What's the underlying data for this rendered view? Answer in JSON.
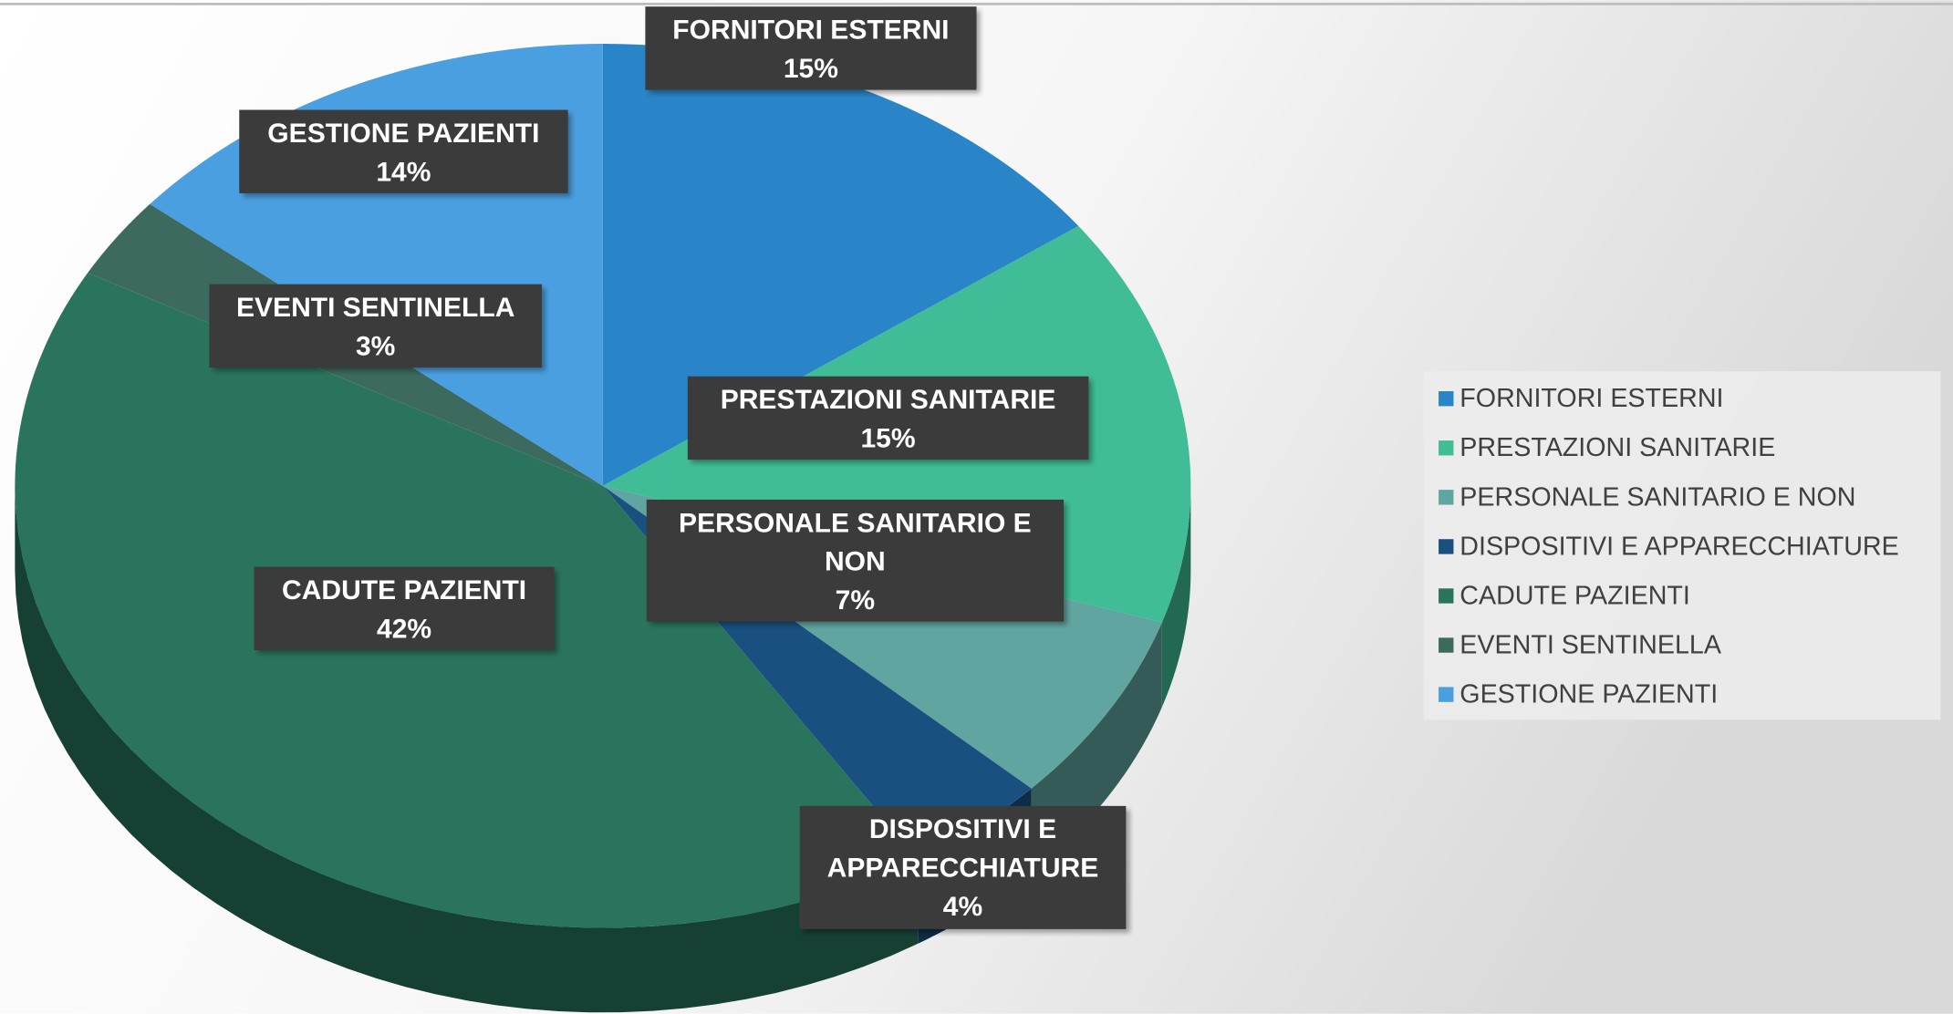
{
  "chart_data": {
    "type": "pie",
    "categories": [
      "FORNITORI ESTERNI",
      "PRESTAZIONI SANITARIE",
      "PERSONALE SANITARIO E NON",
      "DISPOSITIVI E APPARECCHIATURE",
      "CADUTE PAZIENTI",
      "EVENTI SENTINELLA",
      "GESTIONE PAZIENTI"
    ],
    "values": [
      15,
      15,
      7,
      4,
      42,
      3,
      14
    ],
    "value_labels": [
      "15%",
      "15%",
      "7%",
      "4%",
      "42%",
      "3%",
      "14%"
    ],
    "colors": [
      "#2a84c8",
      "#40bd96",
      "#61a5a0",
      "#1a5080",
      "#2a745e",
      "#3d6a5e",
      "#4a9fe0"
    ],
    "legend": "right"
  }
}
